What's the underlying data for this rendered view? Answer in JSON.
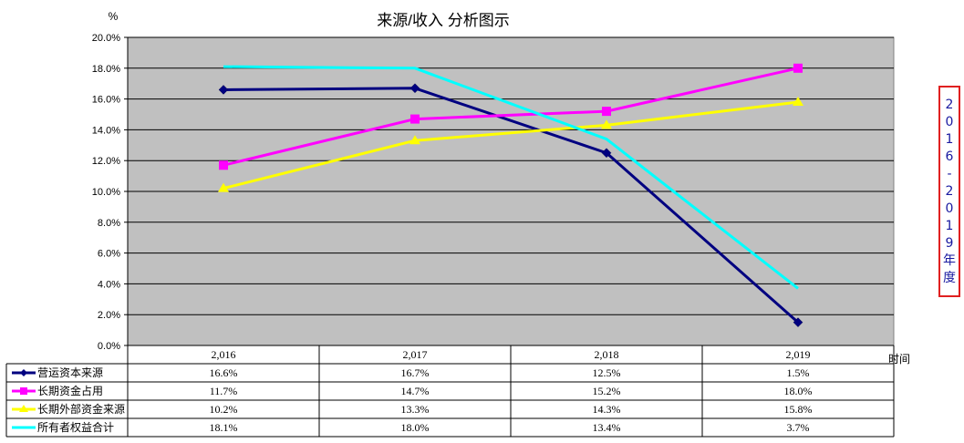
{
  "chart_data": {
    "type": "line",
    "title": "来源/收入  分析图示",
    "ylabel": "%",
    "xlabel": "时间",
    "side_label": "2016-2019年度",
    "categories": [
      "2,016",
      "2,017",
      "2,018",
      "2,019"
    ],
    "ylim": [
      0,
      20
    ],
    "yticks": [
      "0.0%",
      "2.0%",
      "4.0%",
      "6.0%",
      "8.0%",
      "10.0%",
      "12.0%",
      "14.0%",
      "16.0%",
      "18.0%",
      "20.0%"
    ],
    "grid": true,
    "legend": "data-table",
    "plot_background": "#c0c0c0",
    "series": [
      {
        "name": "营运资本来源",
        "values": [
          16.6,
          16.7,
          12.5,
          1.5
        ],
        "labels": [
          "16.6%",
          "16.7%",
          "12.5%",
          "1.5%"
        ],
        "color": "#000080",
        "marker": "diamond"
      },
      {
        "name": "长期资金占用",
        "values": [
          11.7,
          14.7,
          15.2,
          18.0
        ],
        "labels": [
          "11.7%",
          "14.7%",
          "15.2%",
          "18.0%"
        ],
        "color": "#ff00ff",
        "marker": "square"
      },
      {
        "name": "长期外部资金来源",
        "values": [
          10.2,
          13.3,
          14.3,
          15.8
        ],
        "labels": [
          "10.2%",
          "13.3%",
          "14.3%",
          "15.8%"
        ],
        "color": "#ffff00",
        "marker": "triangle"
      },
      {
        "name": "所有者权益合计",
        "values": [
          18.1,
          18.0,
          13.4,
          3.7
        ],
        "labels": [
          "18.1%",
          "18.0%",
          "13.4%",
          "3.7%"
        ],
        "color": "#00ffff",
        "marker": "none"
      }
    ]
  }
}
